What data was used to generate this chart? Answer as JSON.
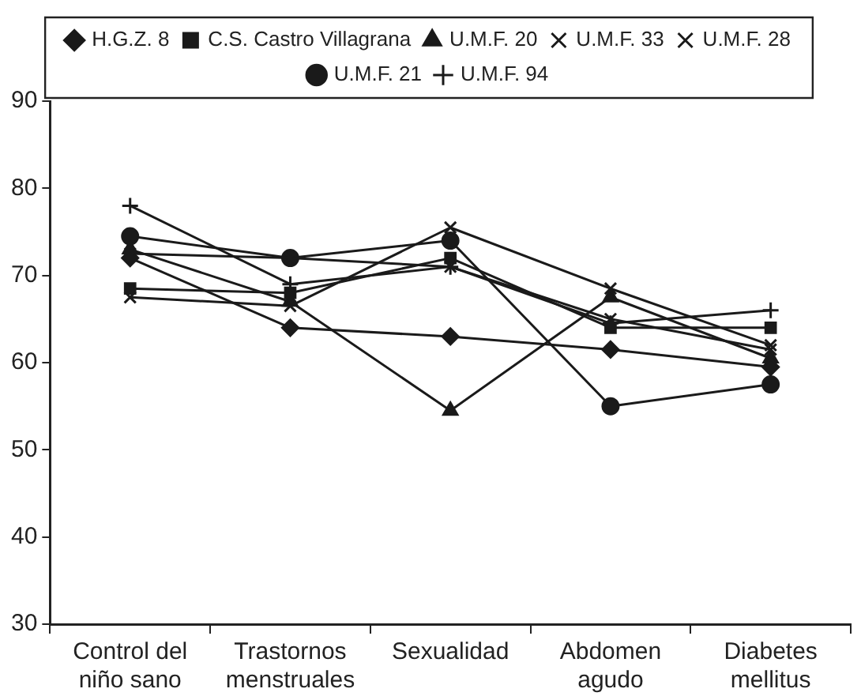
{
  "chart_data": {
    "type": "line",
    "categories": [
      "Control del niño sano",
      "Trastornos menstruales",
      "Sexualidad",
      "Abdomen agudo",
      "Diabetes mellitus"
    ],
    "series": [
      {
        "name": "H.G.Z. 8",
        "color": "#1a1a1a",
        "marker": "diamond",
        "values": [
          72,
          64,
          63,
          61.5,
          59.5
        ]
      },
      {
        "name": "C.S. Castro Villagrana",
        "color": "#1a1a1a",
        "marker": "square",
        "values": [
          68.5,
          68,
          72,
          64,
          64
        ]
      },
      {
        "name": "U.M.F. 20",
        "color": "#1a1a1a",
        "marker": "triangle",
        "values": [
          73,
          67,
          54.5,
          67.5,
          60.5
        ]
      },
      {
        "name": "U.M.F. 33",
        "color": "#1a1a1a",
        "marker": "cross",
        "values": [
          67.5,
          66.5,
          75.5,
          68.5,
          62
        ]
      },
      {
        "name": "U.M.F. 28",
        "color": "#1a1a1a",
        "marker": "cross",
        "values": [
          72.5,
          72,
          71,
          65,
          61.5
        ]
      },
      {
        "name": "U.M.F. 21",
        "color": "#1a1a1a",
        "marker": "circle",
        "values": [
          74.5,
          72,
          74,
          55,
          57.5
        ]
      },
      {
        "name": "U.M.F. 94",
        "color": "#1a1a1a",
        "marker": "plus",
        "values": [
          78,
          69,
          71,
          64.5,
          66
        ]
      }
    ],
    "ylim": [
      30,
      90
    ],
    "yticks": [
      30,
      40,
      50,
      60,
      70,
      80,
      90
    ],
    "grid": false,
    "legend": "top",
    "line_style": "solid"
  }
}
